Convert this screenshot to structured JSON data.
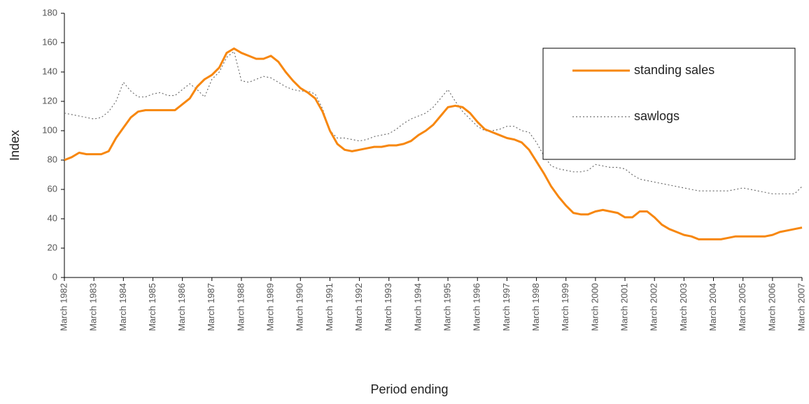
{
  "chart_data": {
    "type": "line",
    "xlabel": "Period ending",
    "ylabel": "Index",
    "categories": [
      "March 1982",
      null,
      null,
      null,
      "March 1983",
      null,
      null,
      null,
      "March 1984",
      null,
      null,
      null,
      "March 1985",
      null,
      null,
      null,
      "March 1986",
      null,
      null,
      null,
      "March 1987",
      null,
      null,
      null,
      "March 1988",
      null,
      null,
      null,
      "March 1989",
      null,
      null,
      null,
      "March 1990",
      null,
      null,
      null,
      "March 1991",
      null,
      null,
      null,
      "March 1992",
      null,
      null,
      null,
      "March 1993",
      null,
      null,
      null,
      "March 1994",
      null,
      null,
      null,
      "March 1995",
      null,
      null,
      null,
      "March 1996",
      null,
      null,
      null,
      "March 1997",
      null,
      null,
      null,
      "March 1998",
      null,
      null,
      null,
      "March 1999",
      null,
      null,
      null,
      "March 2000",
      null,
      null,
      null,
      "March 2001",
      null,
      null,
      null,
      "March 2002",
      null,
      null,
      null,
      "March 2003",
      null,
      null,
      null,
      "March 2004",
      null,
      null,
      null,
      "March 2005",
      null,
      null,
      null,
      "March 2006",
      null,
      null,
      null,
      "March 2007"
    ],
    "series": [
      {
        "name": "standing sales",
        "color": "#f7870f",
        "style": "solid",
        "values": [
          80,
          82,
          85,
          84,
          84,
          84,
          86,
          95,
          102,
          109,
          113,
          114,
          114,
          114,
          114,
          114,
          118,
          122,
          130,
          135,
          138,
          143,
          153,
          156,
          153,
          151,
          149,
          149,
          151,
          147,
          140,
          134,
          129,
          126,
          122,
          113,
          100,
          91,
          87,
          86,
          87,
          88,
          89,
          89,
          90,
          90,
          91,
          93,
          97,
          100,
          104,
          110,
          116,
          117,
          116,
          112,
          106,
          101,
          99,
          97,
          95,
          94,
          92,
          87,
          79,
          71,
          62,
          55,
          49,
          44,
          43,
          43,
          45,
          46,
          45,
          44,
          41,
          41,
          45,
          45,
          41,
          36,
          33,
          31,
          29,
          28,
          26,
          26,
          26,
          26,
          27,
          28,
          28,
          28,
          28,
          28,
          29,
          31,
          32,
          33,
          34
        ]
      },
      {
        "name": "sawlogs",
        "color": "#707070",
        "style": "dotted",
        "values": [
          112,
          111,
          110,
          109,
          108,
          109,
          113,
          120,
          133,
          127,
          123,
          123,
          125,
          126,
          124,
          124,
          128,
          132,
          128,
          123,
          135,
          140,
          150,
          154,
          134,
          133,
          135,
          137,
          136,
          133,
          130,
          128,
          127,
          127,
          125,
          115,
          100,
          95,
          95,
          94,
          93,
          94,
          96,
          97,
          98,
          101,
          105,
          108,
          110,
          112,
          116,
          122,
          128,
          120,
          113,
          108,
          103,
          100,
          100,
          101,
          103,
          103,
          100,
          99,
          92,
          83,
          76,
          74,
          73,
          72,
          72,
          73,
          77,
          76,
          75,
          75,
          74,
          70,
          67,
          66,
          65,
          64,
          63,
          62,
          61,
          60,
          59,
          59,
          59,
          59,
          59,
          60,
          61,
          60,
          59,
          58,
          57,
          57,
          57,
          57,
          62
        ]
      }
    ],
    "ylim": [
      0,
      180
    ],
    "yticks": [
      0,
      20,
      40,
      60,
      80,
      100,
      120,
      140,
      160,
      180
    ],
    "grid": false,
    "legend": "top right"
  }
}
